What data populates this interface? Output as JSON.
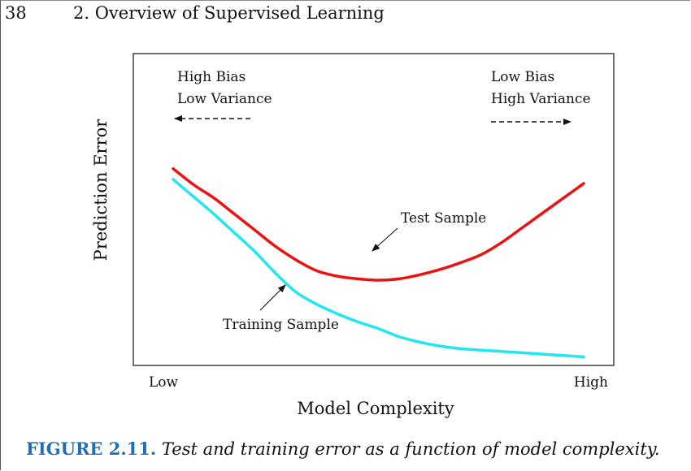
{
  "header": {
    "page_number": "38",
    "chapter_title": "2. Overview of Supervised Learning"
  },
  "caption": {
    "label": "FIGURE 2.11.",
    "text": "Test and training error as a function of model complexity."
  },
  "chart_data": {
    "type": "line",
    "title": "",
    "xlabel": "Model Complexity",
    "ylabel": "Prediction Error",
    "x_tick_labels": [
      "Low",
      "High"
    ],
    "xlim": [
      0,
      10
    ],
    "ylim": [
      0,
      10
    ],
    "grid": false,
    "ticks_shown": false,
    "series": [
      {
        "name": "Test Sample",
        "color": "#ee1111",
        "x": [
          0.0,
          0.5,
          1.0,
          1.5,
          2.0,
          2.5,
          3.0,
          3.5,
          4.0,
          4.5,
          5.0,
          5.5,
          6.0,
          6.5,
          7.0,
          7.5,
          8.0,
          8.5,
          9.0,
          9.5,
          10.0
        ],
        "y": [
          7.2,
          6.6,
          6.1,
          5.5,
          4.9,
          4.3,
          3.8,
          3.4,
          3.2,
          3.1,
          3.05,
          3.1,
          3.25,
          3.45,
          3.7,
          4.0,
          4.45,
          5.0,
          5.55,
          6.1,
          6.65
        ]
      },
      {
        "name": "Training Sample",
        "color": "#22e6f2",
        "x": [
          0.0,
          0.5,
          1.0,
          1.5,
          2.0,
          2.5,
          3.0,
          3.5,
          4.0,
          4.5,
          5.0,
          5.5,
          6.0,
          6.5,
          7.0,
          7.5,
          8.0,
          8.5,
          9.0,
          9.5,
          10.0
        ],
        "y": [
          6.8,
          6.15,
          5.5,
          4.8,
          4.1,
          3.3,
          2.6,
          2.15,
          1.8,
          1.5,
          1.25,
          0.95,
          0.75,
          0.6,
          0.5,
          0.45,
          0.4,
          0.35,
          0.3,
          0.25,
          0.2
        ]
      }
    ],
    "annotations": [
      {
        "text_lines": [
          "High Bias",
          "Low Variance"
        ],
        "arrow": "left",
        "arrow_style": "dashed",
        "position": "top-left"
      },
      {
        "text_lines": [
          "Low Bias",
          "High Variance"
        ],
        "arrow": "right",
        "arrow_style": "dashed",
        "position": "top-right"
      },
      {
        "text": "Test Sample",
        "points_to": "Test Sample curve near its minimum"
      },
      {
        "text": "Training Sample",
        "points_to": "Training Sample curve"
      }
    ]
  }
}
